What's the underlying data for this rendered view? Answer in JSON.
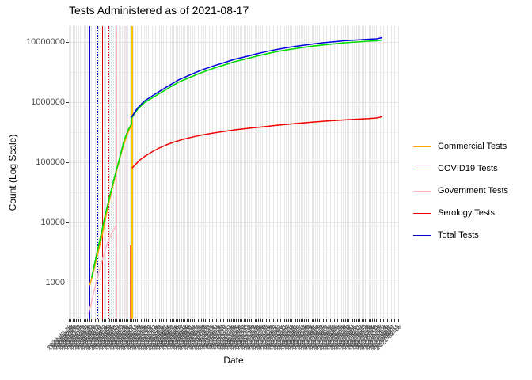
{
  "title": "Tests Administered as of 2021-08-17",
  "y_axis": {
    "label": "Count (Log Scale)",
    "ticks": [
      {
        "value": 10000000,
        "label": "10000000"
      },
      {
        "value": 1000000,
        "label": "1000000"
      },
      {
        "value": 100000,
        "label": "100000"
      },
      {
        "value": 10000,
        "label": "10000"
      },
      {
        "value": 1000,
        "label": "1000"
      }
    ],
    "minor_values": [
      3162278,
      316228,
      31623,
      3162,
      316
    ]
  },
  "x_axis": {
    "label": "Date",
    "start_date": "2020-02-26",
    "end_date": "2021-08-17",
    "tick_step_days": 3,
    "tick_count": 180
  },
  "legend": {
    "entries": [
      {
        "label": "Commercial Tests",
        "color": "#FFA500"
      },
      {
        "label": "COVID19 Tests",
        "color": "#00DB00"
      },
      {
        "label": "Government Tests",
        "color": "#FFB6C1"
      },
      {
        "label": "Serology Tests",
        "color": "#EE0000"
      },
      {
        "label": "Total Tests",
        "color": "#0000CD"
      }
    ]
  },
  "chart_data": {
    "type": "line",
    "title": "Tests Administered as of 2021-08-17",
    "xlabel": "Date",
    "ylabel": "Count (Log Scale)",
    "y_scale": "log",
    "ylim": [
      250,
      18000000
    ],
    "x_span_days": 537,
    "grid": true,
    "legend_position": "right",
    "series": [
      {
        "name": "Commercial Tests",
        "color": "#FFA500",
        "width": 1.6,
        "segments": [
          [
            [
              34,
              900
            ],
            [
              40,
              1500
            ],
            [
              48,
              3300
            ],
            [
              56,
              7500
            ],
            [
              63,
              17000
            ],
            [
              71,
              38000
            ],
            [
              79,
              80000
            ],
            [
              86,
              150000
            ],
            [
              93,
              250000
            ],
            [
              98,
              340000
            ],
            [
              102,
              420000
            ]
          ]
        ]
      },
      {
        "name": "Government Tests",
        "color": "#FFB6C1",
        "width": 1.4,
        "segments": [
          [
            [
              32,
              300
            ],
            [
              40,
              650
            ],
            [
              48,
              1400
            ],
            [
              56,
              2700
            ],
            [
              63,
              4600
            ],
            [
              70,
              6600
            ],
            [
              77,
              8800
            ]
          ]
        ]
      },
      {
        "name": "COVID19 Tests",
        "color": "#00DB00",
        "width": 1.6,
        "segments": [
          [
            [
              37,
              1200
            ],
            [
              44,
              2600
            ],
            [
              52,
              6000
            ],
            [
              59,
              13000
            ],
            [
              67,
              28000
            ],
            [
              75,
              60000
            ],
            [
              83,
              120000
            ],
            [
              90,
              230000
            ],
            [
              97,
              350000
            ],
            [
              102,
              430000
            ],
            [
              102,
              540000
            ],
            [
              112,
              760000
            ],
            [
              123,
              980000
            ],
            [
              136,
              1180000
            ],
            [
              148,
              1400000
            ],
            [
              164,
              1750000
            ],
            [
              179,
              2150000
            ],
            [
              198,
              2600000
            ],
            [
              216,
              3100000
            ],
            [
              234,
              3600000
            ],
            [
              252,
              4100000
            ],
            [
              270,
              4700000
            ],
            [
              288,
              5200000
            ],
            [
              306,
              5800000
            ],
            [
              324,
              6400000
            ],
            [
              342,
              7000000
            ],
            [
              360,
              7500000
            ],
            [
              378,
              8000000
            ],
            [
              396,
              8500000
            ],
            [
              414,
              8900000
            ],
            [
              432,
              9300000
            ],
            [
              450,
              9700000
            ],
            [
              469,
              10000000
            ],
            [
              487,
              10300000
            ],
            [
              502,
              10500000
            ],
            [
              511,
              10800000
            ]
          ]
        ]
      },
      {
        "name": "Serology Tests",
        "color": "#EE0000",
        "width": 1.5,
        "segments": [
          [
            [
              101,
              250
            ],
            [
              101,
              4200
            ]
          ],
          [
            [
              103,
              80000
            ],
            [
              110,
              95000
            ],
            [
              117,
              112000
            ],
            [
              125,
              128000
            ],
            [
              136,
              150000
            ],
            [
              146,
              170000
            ],
            [
              159,
              195000
            ],
            [
              172,
              218000
            ],
            [
              187,
              242000
            ],
            [
              203,
              265000
            ],
            [
              218,
              285000
            ],
            [
              236,
              307000
            ],
            [
              254,
              327000
            ],
            [
              272,
              347000
            ],
            [
              290,
              365000
            ],
            [
              309,
              382000
            ],
            [
              327,
              400000
            ],
            [
              345,
              418000
            ],
            [
              363,
              435000
            ],
            [
              381,
              452000
            ],
            [
              399,
              468000
            ],
            [
              417,
              483000
            ],
            [
              435,
              497000
            ],
            [
              453,
              510000
            ],
            [
              471,
              522000
            ],
            [
              489,
              533000
            ],
            [
              502,
              545000
            ],
            [
              511,
              575000
            ]
          ]
        ]
      },
      {
        "name": "Total Tests",
        "color": "#0000DD",
        "width": 1.5,
        "segments": [
          [
            [
              102,
              560000
            ],
            [
              112,
              800000
            ],
            [
              123,
              1040000
            ],
            [
              136,
              1270000
            ],
            [
              148,
              1520000
            ],
            [
              164,
              1900000
            ],
            [
              179,
              2350000
            ],
            [
              198,
              2850000
            ],
            [
              216,
              3400000
            ],
            [
              234,
              3950000
            ],
            [
              252,
              4500000
            ],
            [
              270,
              5150000
            ],
            [
              288,
              5700000
            ],
            [
              306,
              6350000
            ],
            [
              324,
              7000000
            ],
            [
              342,
              7600000
            ],
            [
              360,
              8200000
            ],
            [
              378,
              8700000
            ],
            [
              396,
              9200000
            ],
            [
              414,
              9700000
            ],
            [
              432,
              10100000
            ],
            [
              450,
              10500000
            ],
            [
              469,
              10800000
            ],
            [
              487,
              11100000
            ],
            [
              502,
              11300000
            ],
            [
              507,
              11600000
            ],
            [
              511,
              11800000
            ]
          ]
        ]
      }
    ],
    "event_vlines": [
      {
        "day": 35,
        "color": "#0000CC",
        "style": "solid",
        "width": 1.5
      },
      {
        "day": 48,
        "color": "#0000CC",
        "style": "dotted",
        "width": 1.5
      },
      {
        "day": 55,
        "color": "#DD0000",
        "style": "solid",
        "width": 1.7
      },
      {
        "day": 65,
        "color": "#DD0000",
        "style": "dotted",
        "width": 1.5
      },
      {
        "day": 79,
        "color": "#FFB6C1",
        "style": "solid",
        "width": 1.5
      },
      {
        "day": 92,
        "color": "#FFCCD5",
        "style": "dotted",
        "width": 1.5
      },
      {
        "day": 103,
        "color": "#FFC000",
        "style": "solid",
        "width": 2.2
      }
    ]
  }
}
